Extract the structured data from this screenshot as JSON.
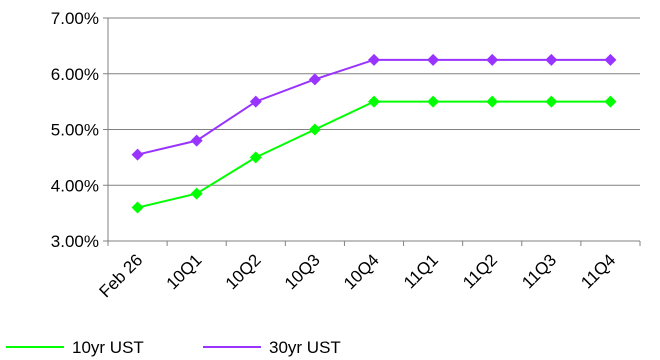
{
  "chart_data": {
    "type": "line",
    "categories": [
      "Feb 26",
      "10Q1",
      "10Q2",
      "10Q3",
      "10Q4",
      "11Q1",
      "11Q2",
      "11Q3",
      "11Q4"
    ],
    "series": [
      {
        "name": "10yr UST",
        "color": "#00ff00",
        "marker": "diamond",
        "values": [
          3.6,
          3.85,
          4.5,
          5.0,
          5.5,
          5.5,
          5.5,
          5.5,
          5.5
        ]
      },
      {
        "name": "30yr UST",
        "color": "#9933ff",
        "marker": "diamond",
        "values": [
          4.55,
          4.8,
          5.5,
          5.9,
          6.25,
          6.25,
          6.25,
          6.25,
          6.25
        ]
      }
    ],
    "ylim": [
      3.0,
      7.0
    ],
    "yticks": [
      3.0,
      4.0,
      5.0,
      6.0,
      7.0
    ],
    "ytick_labels": [
      "3.00%",
      "4.00%",
      "5.00%",
      "6.00%",
      "7.00%"
    ],
    "grid": true,
    "legend_position": "bottom"
  }
}
